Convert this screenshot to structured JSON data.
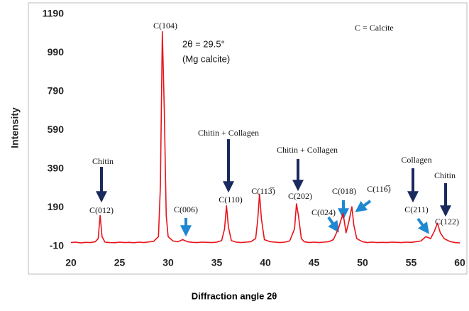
{
  "chart_data": {
    "type": "line",
    "x_label": "Diffraction angle 2θ",
    "y_label": "Intensity",
    "xlim": [
      20,
      60
    ],
    "xticks": [
      20,
      25,
      30,
      35,
      40,
      45,
      50,
      55,
      60
    ],
    "ylim": [
      -10,
      1190
    ],
    "yticks": [
      -10,
      190,
      390,
      590,
      790,
      990,
      1190
    ],
    "grid": false,
    "series": [
      {
        "color": "#e8141a",
        "x": [
          20,
          20.5,
          21,
          21.5,
          22,
          22.5,
          22.8,
          23,
          23.2,
          23.5,
          24,
          24.5,
          25,
          25.5,
          26,
          26.5,
          27,
          27.5,
          28,
          28.5,
          29,
          29.2,
          29.4,
          29.6,
          29.8,
          30,
          30.5,
          31,
          31.5,
          32,
          32.5,
          33,
          33.5,
          34,
          34.5,
          35,
          35.5,
          35.8,
          36,
          36.2,
          36.5,
          37,
          37.5,
          38,
          38.5,
          39,
          39.2,
          39.4,
          39.6,
          39.9,
          40.5,
          41,
          41.5,
          42,
          42.5,
          43,
          43.2,
          43.4,
          43.7,
          44,
          44.5,
          45,
          45.5,
          46,
          46.5,
          47,
          47.5,
          47.8,
          48,
          48.3,
          48.6,
          48.9,
          49.1,
          49.4,
          50,
          50.5,
          51,
          51.5,
          52,
          52.5,
          53,
          53.5,
          54,
          54.5,
          55,
          55.5,
          56,
          56.5,
          56.8,
          57,
          57.4,
          57.7,
          58,
          58.4,
          59,
          59.5,
          60
        ],
        "values": [
          10,
          12,
          8,
          11,
          10,
          14,
          30,
          150,
          40,
          12,
          10,
          9,
          12,
          10,
          11,
          9,
          12,
          10,
          13,
          16,
          40,
          300,
          1100,
          700,
          150,
          40,
          18,
          14,
          25,
          14,
          11,
          10,
          12,
          11,
          10,
          12,
          20,
          80,
          200,
          90,
          20,
          12,
          10,
          12,
          14,
          30,
          120,
          260,
          130,
          25,
          14,
          12,
          10,
          12,
          18,
          80,
          210,
          150,
          30,
          14,
          10,
          12,
          10,
          12,
          14,
          25,
          80,
          130,
          160,
          60,
          120,
          195,
          100,
          30,
          14,
          10,
          12,
          10,
          11,
          10,
          12,
          11,
          10,
          12,
          11,
          14,
          18,
          40,
          35,
          30,
          70,
          110,
          60,
          30,
          15,
          10,
          8
        ]
      }
    ],
    "annotations": [
      "C(104)",
      "2θ = 29.5°",
      "(Mg calcite)",
      "C = Calcite",
      "Chitin",
      "C(012)",
      "C(006)",
      "Chitin + Collagen",
      "C(110)",
      "C(113̅)",
      "Chitin + Collagen",
      "C(202)",
      "C(024)",
      "C(018)",
      "C(116̅)",
      "Collagen",
      "C(211)",
      "Chitin",
      "C(122)"
    ]
  }
}
